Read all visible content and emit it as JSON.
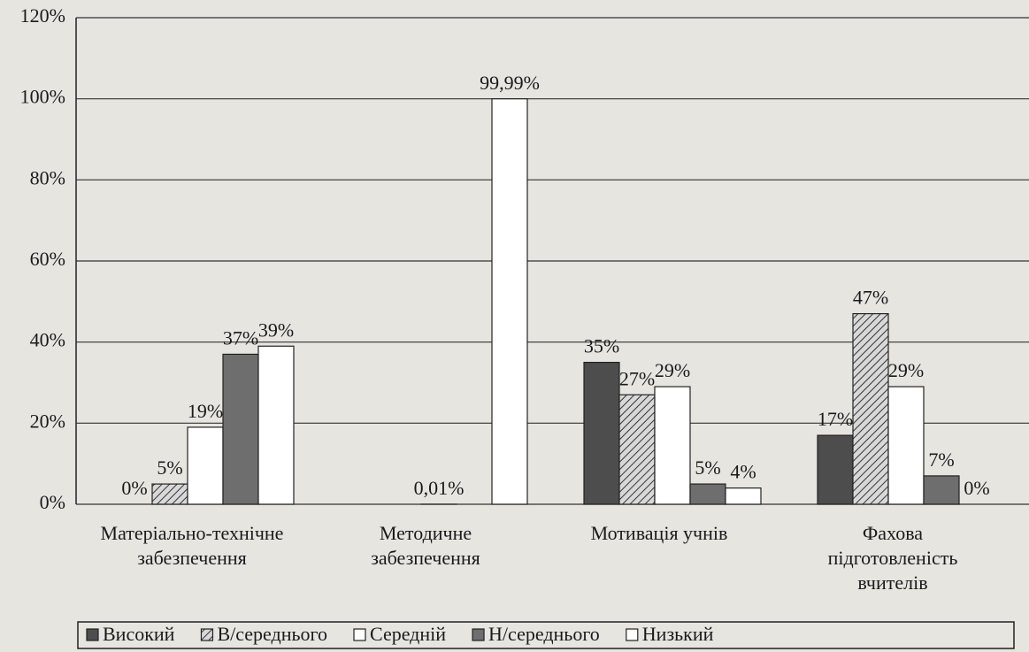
{
  "chart_data": {
    "type": "bar",
    "categories": [
      "Матеріально-технічне\nзабезпечення",
      "Методичне\nзабезпечення",
      "Мотивація учнів",
      "Фахова\nпідготовленість\nвчителів"
    ],
    "series": [
      {
        "name": "Високий",
        "color": "#4d4d4d",
        "pattern": "solid",
        "values": [
          0,
          null,
          35,
          17
        ],
        "value_labels": [
          "0%",
          null,
          "35%",
          "17%"
        ]
      },
      {
        "name": "В/середнього",
        "color": "#b5b5b5",
        "pattern": "hatch",
        "values": [
          5,
          null,
          27,
          47
        ],
        "value_labels": [
          "5%",
          null,
          "27%",
          "47%"
        ]
      },
      {
        "name": "Середній",
        "color": "#ffffff",
        "pattern": "solid",
        "values": [
          19,
          0.01,
          29,
          29
        ],
        "value_labels": [
          "19%",
          "0,01%",
          "29%",
          "29%"
        ]
      },
      {
        "name": "Н/середнього",
        "color": "#6e6e6e",
        "pattern": "solid",
        "values": [
          37,
          null,
          5,
          7
        ],
        "value_labels": [
          "37%",
          null,
          "5%",
          "7%"
        ]
      },
      {
        "name": "Низький",
        "color": "#ffffff",
        "pattern": "solid",
        "values": [
          39,
          99.99,
          4,
          0
        ],
        "value_labels": [
          "39%",
          "99,99%",
          "4%",
          "0%"
        ]
      }
    ],
    "ylim": [
      0,
      120
    ],
    "yticks": [
      {
        "value": 0,
        "label": "0%"
      },
      {
        "value": 20,
        "label": "20%"
      },
      {
        "value": 40,
        "label": "40%"
      },
      {
        "value": 60,
        "label": "60%"
      },
      {
        "value": 80,
        "label": "80%"
      },
      {
        "value": 100,
        "label": "100%"
      },
      {
        "value": 120,
        "label": "120%"
      }
    ],
    "grid": true
  }
}
